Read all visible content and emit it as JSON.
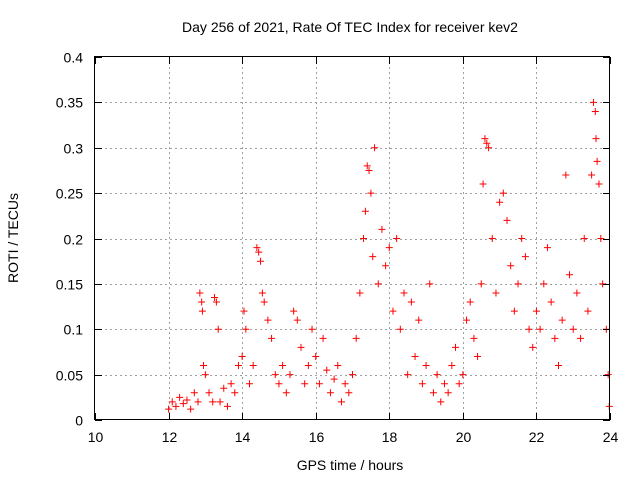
{
  "chart_data": {
    "type": "scatter",
    "title": "Day 256 of 2021, Rate Of TEC Index for receiver kev2",
    "xlabel": "GPS time / hours",
    "ylabel": "ROTI / TECUs",
    "xlim": [
      10,
      24
    ],
    "ylim": [
      0,
      0.4
    ],
    "xticks": [
      10,
      12,
      14,
      16,
      18,
      20,
      22,
      24
    ],
    "yticks": [
      0,
      0.05,
      0.1,
      0.15,
      0.2,
      0.25,
      0.3,
      0.35,
      0.4
    ],
    "xtick_labels": [
      "10",
      "12",
      "14",
      "16",
      "18",
      "20",
      "22",
      "24"
    ],
    "ytick_labels": [
      "0",
      "0.05",
      "0.1",
      "0.15",
      "0.2",
      "0.25",
      "0.3",
      "0.35",
      "0.4"
    ],
    "grid": true,
    "marker": "+",
    "color": "#ff0000",
    "series": [
      {
        "name": "ROTI",
        "points": [
          [
            12.0,
            0.012
          ],
          [
            12.1,
            0.02
          ],
          [
            12.2,
            0.015
          ],
          [
            12.3,
            0.025
          ],
          [
            12.4,
            0.018
          ],
          [
            12.5,
            0.022
          ],
          [
            12.6,
            0.012
          ],
          [
            12.7,
            0.03
          ],
          [
            12.8,
            0.02
          ],
          [
            12.85,
            0.14
          ],
          [
            12.9,
            0.13
          ],
          [
            12.92,
            0.12
          ],
          [
            12.95,
            0.06
          ],
          [
            13.0,
            0.05
          ],
          [
            13.1,
            0.03
          ],
          [
            13.2,
            0.02
          ],
          [
            13.25,
            0.135
          ],
          [
            13.3,
            0.13
          ],
          [
            13.35,
            0.1
          ],
          [
            13.4,
            0.02
          ],
          [
            13.5,
            0.035
          ],
          [
            13.6,
            0.015
          ],
          [
            13.7,
            0.04
          ],
          [
            13.8,
            0.03
          ],
          [
            13.9,
            0.06
          ],
          [
            14.0,
            0.07
          ],
          [
            14.05,
            0.12
          ],
          [
            14.1,
            0.1
          ],
          [
            14.2,
            0.04
          ],
          [
            14.3,
            0.06
          ],
          [
            14.4,
            0.19
          ],
          [
            14.45,
            0.185
          ],
          [
            14.5,
            0.175
          ],
          [
            14.55,
            0.14
          ],
          [
            14.6,
            0.13
          ],
          [
            14.7,
            0.11
          ],
          [
            14.8,
            0.09
          ],
          [
            14.9,
            0.05
          ],
          [
            15.0,
            0.04
          ],
          [
            15.1,
            0.06
          ],
          [
            15.2,
            0.03
          ],
          [
            15.3,
            0.05
          ],
          [
            15.4,
            0.12
          ],
          [
            15.5,
            0.11
          ],
          [
            15.6,
            0.08
          ],
          [
            15.7,
            0.04
          ],
          [
            15.8,
            0.06
          ],
          [
            15.9,
            0.1
          ],
          [
            16.0,
            0.07
          ],
          [
            16.1,
            0.04
          ],
          [
            16.2,
            0.09
          ],
          [
            16.3,
            0.055
          ],
          [
            16.4,
            0.03
          ],
          [
            16.5,
            0.045
          ],
          [
            16.6,
            0.06
          ],
          [
            16.7,
            0.02
          ],
          [
            16.8,
            0.04
          ],
          [
            16.9,
            0.03
          ],
          [
            17.0,
            0.05
          ],
          [
            17.1,
            0.09
          ],
          [
            17.2,
            0.14
          ],
          [
            17.3,
            0.2
          ],
          [
            17.35,
            0.23
          ],
          [
            17.4,
            0.28
          ],
          [
            17.45,
            0.275
          ],
          [
            17.5,
            0.25
          ],
          [
            17.55,
            0.18
          ],
          [
            17.6,
            0.3
          ],
          [
            17.7,
            0.15
          ],
          [
            17.8,
            0.21
          ],
          [
            17.9,
            0.17
          ],
          [
            18.0,
            0.19
          ],
          [
            18.1,
            0.12
          ],
          [
            18.2,
            0.2
          ],
          [
            18.3,
            0.1
          ],
          [
            18.4,
            0.14
          ],
          [
            18.5,
            0.05
          ],
          [
            18.6,
            0.13
          ],
          [
            18.7,
            0.07
          ],
          [
            18.8,
            0.11
          ],
          [
            18.9,
            0.04
          ],
          [
            19.0,
            0.06
          ],
          [
            19.1,
            0.15
          ],
          [
            19.2,
            0.03
          ],
          [
            19.3,
            0.05
          ],
          [
            19.4,
            0.02
          ],
          [
            19.5,
            0.04
          ],
          [
            19.6,
            0.03
          ],
          [
            19.7,
            0.06
          ],
          [
            19.8,
            0.08
          ],
          [
            19.9,
            0.04
          ],
          [
            20.0,
            0.05
          ],
          [
            20.1,
            0.11
          ],
          [
            20.2,
            0.13
          ],
          [
            20.3,
            0.09
          ],
          [
            20.4,
            0.07
          ],
          [
            20.5,
            0.15
          ],
          [
            20.55,
            0.26
          ],
          [
            20.6,
            0.31
          ],
          [
            20.65,
            0.305
          ],
          [
            20.7,
            0.3
          ],
          [
            20.8,
            0.2
          ],
          [
            20.9,
            0.14
          ],
          [
            21.0,
            0.24
          ],
          [
            21.1,
            0.25
          ],
          [
            21.2,
            0.22
          ],
          [
            21.3,
            0.17
          ],
          [
            21.4,
            0.12
          ],
          [
            21.5,
            0.15
          ],
          [
            21.6,
            0.2
          ],
          [
            21.7,
            0.18
          ],
          [
            21.8,
            0.1
          ],
          [
            21.9,
            0.08
          ],
          [
            22.0,
            0.12
          ],
          [
            22.1,
            0.1
          ],
          [
            22.2,
            0.15
          ],
          [
            22.3,
            0.19
          ],
          [
            22.4,
            0.13
          ],
          [
            22.5,
            0.09
          ],
          [
            22.6,
            0.06
          ],
          [
            22.7,
            0.11
          ],
          [
            22.8,
            0.27
          ],
          [
            22.9,
            0.16
          ],
          [
            23.0,
            0.1
          ],
          [
            23.1,
            0.14
          ],
          [
            23.2,
            0.09
          ],
          [
            23.3,
            0.2
          ],
          [
            23.4,
            0.12
          ],
          [
            23.5,
            0.27
          ],
          [
            23.55,
            0.35
          ],
          [
            23.6,
            0.34
          ],
          [
            23.62,
            0.31
          ],
          [
            23.65,
            0.285
          ],
          [
            23.7,
            0.26
          ],
          [
            23.75,
            0.2
          ],
          [
            23.8,
            0.15
          ],
          [
            23.9,
            0.1
          ],
          [
            23.95,
            0.05
          ],
          [
            23.98,
            0.015
          ]
        ]
      }
    ]
  }
}
